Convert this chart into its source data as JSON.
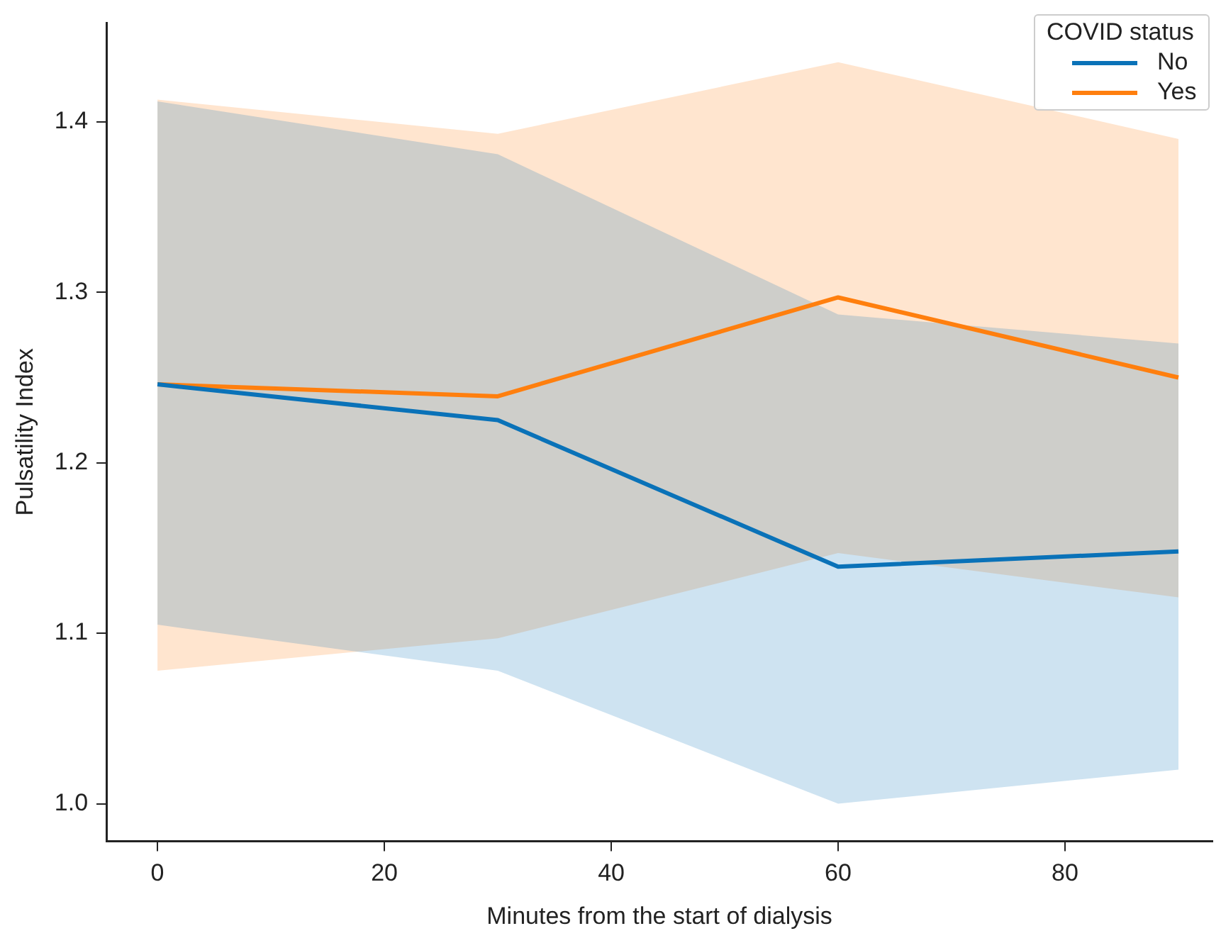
{
  "chart_data": {
    "type": "line",
    "xlabel": "Minutes from the start of dialysis",
    "ylabel": "Pulsatility Index",
    "legend_title": "COVID status",
    "legend": "top right",
    "grid": false,
    "marker": "none",
    "line_style": "solid",
    "x": [
      0,
      30,
      60,
      90
    ],
    "xlim": [
      -4.5,
      93
    ],
    "xticks": [
      0,
      20,
      40,
      60,
      80
    ],
    "ylim": [
      0.978,
      1.458
    ],
    "yticks": [
      {
        "value": 1,
        "label": "1.0"
      },
      {
        "value": 1.1,
        "label": "1.1"
      },
      {
        "value": 1.2,
        "label": "1.2"
      },
      {
        "value": 1.3,
        "label": "1.3"
      },
      {
        "value": 1.4,
        "label": "1.4"
      }
    ],
    "series": [
      {
        "name": "No",
        "color": "#0a72b8",
        "values": [
          1.246,
          1.225,
          1.139,
          1.148
        ],
        "lower": [
          1.105,
          1.078,
          1.0,
          1.02
        ],
        "upper": [
          1.412,
          1.381,
          1.287,
          1.27
        ]
      },
      {
        "name": "Yes",
        "color": "#ff7f0e",
        "values": [
          1.246,
          1.239,
          1.297,
          1.25
        ],
        "lower": [
          1.078,
          1.097,
          1.147,
          1.121
        ],
        "upper": [
          1.413,
          1.393,
          1.435,
          1.39
        ]
      }
    ]
  }
}
